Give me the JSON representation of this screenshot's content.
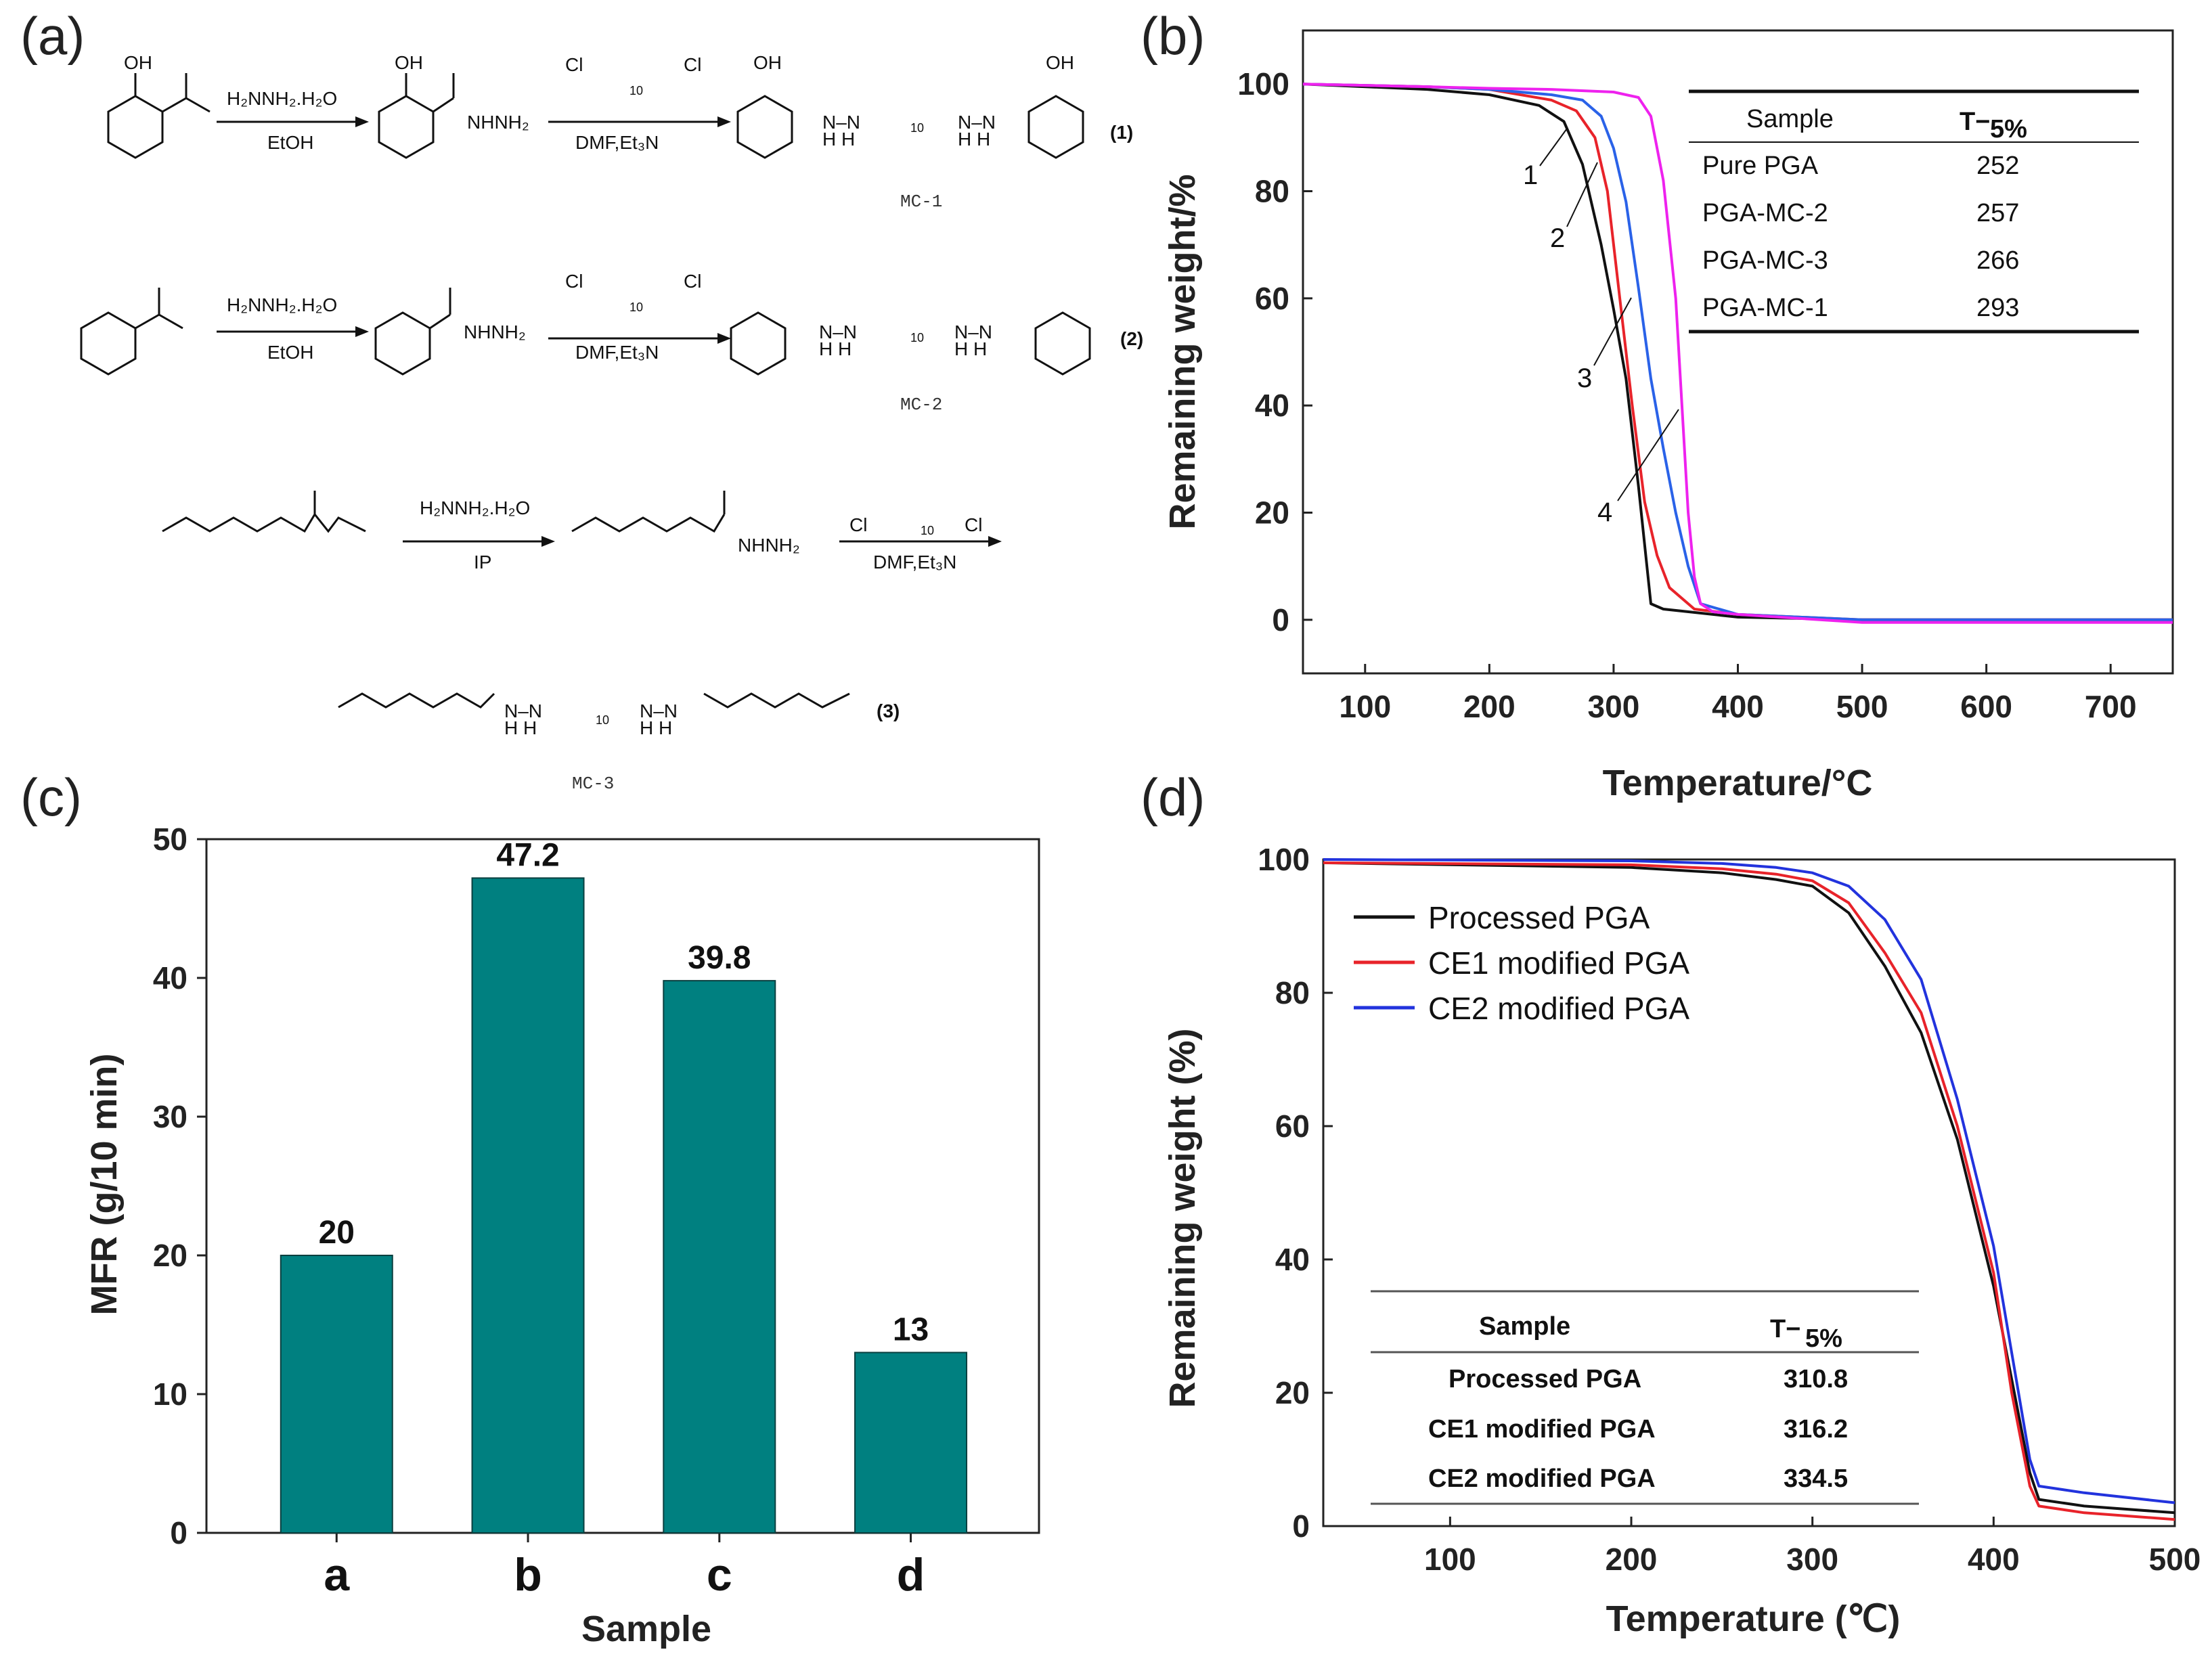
{
  "panels": {
    "a": "(a)",
    "b": "(b)",
    "c": "(c)",
    "d": "(d)"
  },
  "scheme": {
    "reaction1": {
      "reagent1_top": "H₂NNH₂.H₂O",
      "reagent1_bottom": "EtOH",
      "reagent2_top_left": "Cl",
      "reagent2_top_right": "Cl",
      "reagent2_sub": "10",
      "reagent2_bottom": "DMF,Et₃N",
      "oh": "OH",
      "nhnh2": "NHNH₂",
      "nh_pair": "N–N",
      "h_pair": "H   H",
      "sub10": "10",
      "number": "(1)",
      "product_id": "MC-1"
    },
    "reaction2": {
      "reagent1_top": "H₂NNH₂.H₂O",
      "reagent1_bottom": "EtOH",
      "reagent2_top_left": "Cl",
      "reagent2_top_right": "Cl",
      "reagent2_sub": "10",
      "reagent2_bottom": "DMF,Et₃N",
      "nhnh2": "NHNH₂",
      "nh_pair": "N–N",
      "h_pair": "H   H",
      "sub10": "10",
      "number": "(2)",
      "product_id": "MC-2"
    },
    "reaction3": {
      "reagent1_top": "H₂NNH₂.H₂O",
      "reagent1_bottom": "IP",
      "reagent2_top_left": "Cl",
      "reagent2_top_right": "Cl",
      "reagent2_sub": "10",
      "reagent2_bottom": "DMF,Et₃N",
      "nhnh2": "NHNH₂",
      "nh_pair": "N–N",
      "h_pair": "H   H",
      "sub10": "10",
      "number": "(3)",
      "product_id": "MC-3"
    }
  },
  "chart_data": [
    {
      "panel": "b",
      "type": "line",
      "xlabel": "Temperature/°C",
      "ylabel": "Remaining weight/%",
      "xlim": [
        50,
        750
      ],
      "ylim": [
        -10,
        110
      ],
      "xticks": [
        100,
        200,
        300,
        400,
        500,
        600,
        700
      ],
      "yticks": [
        0,
        20,
        40,
        60,
        80,
        100
      ],
      "series": [
        {
          "name": "1",
          "color": "#111111",
          "x": [
            50,
            150,
            200,
            240,
            260,
            275,
            290,
            300,
            310,
            320,
            330,
            340,
            400,
            500,
            750
          ],
          "y": [
            100,
            99,
            98,
            96,
            93,
            85,
            70,
            58,
            45,
            25,
            3,
            2,
            0.5,
            0,
            0
          ]
        },
        {
          "name": "2",
          "color": "#e8232a",
          "x": [
            50,
            150,
            200,
            250,
            270,
            285,
            295,
            305,
            315,
            325,
            335,
            345,
            365,
            400,
            500,
            750
          ],
          "y": [
            100,
            99.5,
            99,
            97,
            95,
            90,
            80,
            60,
            40,
            22,
            12,
            6,
            2,
            1,
            0,
            0
          ]
        },
        {
          "name": "3",
          "color": "#2a62e8",
          "x": [
            50,
            150,
            200,
            250,
            275,
            290,
            300,
            310,
            320,
            330,
            340,
            350,
            360,
            370,
            400,
            500,
            750
          ],
          "y": [
            100,
            99.5,
            99,
            98,
            97,
            94,
            88,
            78,
            62,
            45,
            32,
            20,
            10,
            3,
            1,
            0,
            0
          ]
        },
        {
          "name": "4",
          "color": "#ee22ee",
          "x": [
            50,
            150,
            200,
            250,
            300,
            320,
            330,
            340,
            350,
            355,
            360,
            365,
            370,
            380,
            400,
            500,
            750
          ],
          "y": [
            100,
            99.5,
            99.2,
            99,
            98.5,
            97.5,
            94,
            82,
            60,
            40,
            20,
            8,
            3,
            1.5,
            1,
            -0.5,
            -0.5
          ]
        }
      ],
      "table": {
        "headers": [
          "Sample",
          "T−",
          "5%"
        ],
        "rows": [
          [
            "Pure PGA",
            "252"
          ],
          [
            "PGA-MC-2",
            "257"
          ],
          [
            "PGA-MC-3",
            "266"
          ],
          [
            "PGA-MC-1",
            "293"
          ]
        ]
      }
    },
    {
      "panel": "c",
      "type": "bar",
      "xlabel": "Sample",
      "ylabel": "MFR (g/10 min)",
      "ylim": [
        0,
        50
      ],
      "yticks": [
        0,
        10,
        20,
        30,
        40,
        50
      ],
      "categories": [
        "a",
        "b",
        "c",
        "d"
      ],
      "values": [
        20,
        47.2,
        39.8,
        13
      ],
      "value_labels": [
        "20",
        "47.2",
        "39.8",
        "13"
      ],
      "bar_color": "#008080"
    },
    {
      "panel": "d",
      "type": "line",
      "xlabel": "Temperature (℃)",
      "ylabel": "Remaining weight (%)",
      "xlim": [
        30,
        500
      ],
      "ylim": [
        0,
        100
      ],
      "xticks": [
        100,
        200,
        300,
        400,
        500
      ],
      "yticks": [
        0,
        20,
        40,
        60,
        80,
        100
      ],
      "series": [
        {
          "name": "Processed PGA",
          "color": "#111111",
          "x": [
            30,
            200,
            250,
            280,
            300,
            320,
            340,
            360,
            380,
            400,
            410,
            420,
            425,
            450,
            500
          ],
          "y": [
            99.5,
            98.8,
            98,
            97,
            96,
            92,
            84,
            74,
            58,
            36,
            22,
            8,
            4,
            3,
            2
          ]
        },
        {
          "name": "CE1 modified PGA",
          "color": "#e8232a",
          "x": [
            30,
            200,
            250,
            280,
            300,
            320,
            340,
            360,
            380,
            400,
            410,
            420,
            425,
            450,
            500
          ],
          "y": [
            99.5,
            99.2,
            98.6,
            97.8,
            96.8,
            93.5,
            86,
            77,
            60,
            38,
            20,
            6,
            3,
            2,
            1
          ]
        },
        {
          "name": "CE2 modified PGA",
          "color": "#2233dd",
          "x": [
            30,
            200,
            250,
            280,
            300,
            320,
            340,
            360,
            380,
            400,
            410,
            420,
            425,
            450,
            500
          ],
          "y": [
            100,
            99.8,
            99.4,
            98.8,
            98,
            96,
            91,
            82,
            64,
            42,
            26,
            10,
            6,
            5,
            3.5
          ]
        }
      ],
      "table": {
        "headers": [
          "Sample",
          "T−",
          "5%"
        ],
        "rows": [
          [
            "Processed PGA",
            "310.8"
          ],
          [
            "CE1 modified PGA",
            "316.2"
          ],
          [
            "CE2 modified PGA",
            "334.5"
          ]
        ]
      }
    }
  ]
}
